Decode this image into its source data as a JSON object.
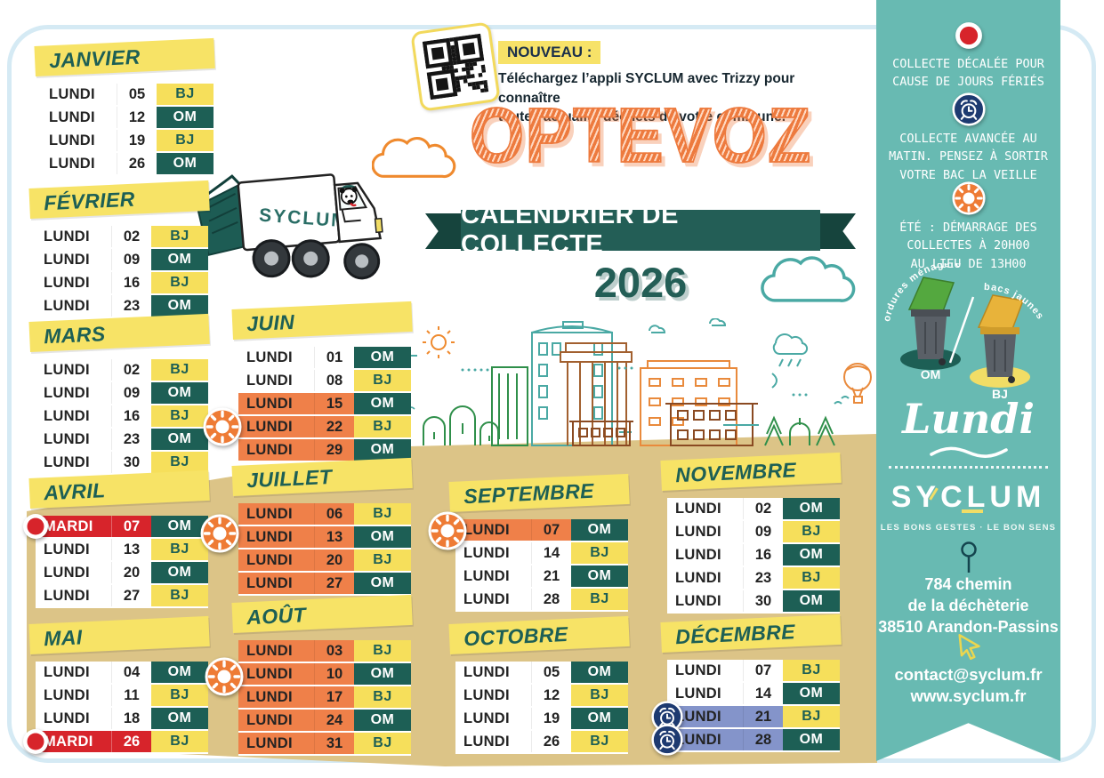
{
  "colors": {
    "teal": "#1d5f55",
    "teal_dark": "#16443d",
    "yellow": "#f7e366",
    "badge_yellow": "#f6df5b",
    "orange": "#ef8049",
    "orange_title": "#ed7a3e",
    "red": "#d7242b",
    "navy": "#1d3a70",
    "periwinkle": "#8494ca",
    "sand": "#dcc487",
    "sidebar_teal": "#68bab2"
  },
  "header": {
    "nouveau": "NOUVEAU :",
    "promo": "Téléchargez l’appli SYCLUM avec Trizzy pour connaître\ntoute l’actualité déchets de votre commune."
  },
  "title": {
    "commune": "OPTEVOZ",
    "banner": "CALENDRIER DE COLLECTE",
    "year": "2026"
  },
  "truck": {
    "brand": "SYCLUM"
  },
  "months": [
    {
      "key": "janvier",
      "name": "JANVIER",
      "rows": [
        {
          "day": "LUNDI",
          "date": "05",
          "type": "BJ",
          "variant": "normal",
          "icon": null
        },
        {
          "day": "LUNDI",
          "date": "12",
          "type": "OM",
          "variant": "normal",
          "icon": null
        },
        {
          "day": "LUNDI",
          "date": "19",
          "type": "BJ",
          "variant": "normal",
          "icon": null
        },
        {
          "day": "LUNDI",
          "date": "26",
          "type": "OM",
          "variant": "normal",
          "icon": null
        }
      ]
    },
    {
      "key": "fevrier",
      "name": "FÉVRIER",
      "rows": [
        {
          "day": "LUNDI",
          "date": "02",
          "type": "BJ",
          "variant": "normal",
          "icon": null
        },
        {
          "day": "LUNDI",
          "date": "09",
          "type": "OM",
          "variant": "normal",
          "icon": null
        },
        {
          "day": "LUNDI",
          "date": "16",
          "type": "BJ",
          "variant": "normal",
          "icon": null
        },
        {
          "day": "LUNDI",
          "date": "23",
          "type": "OM",
          "variant": "normal",
          "icon": null
        }
      ]
    },
    {
      "key": "mars",
      "name": "MARS",
      "rows": [
        {
          "day": "LUNDI",
          "date": "02",
          "type": "BJ",
          "variant": "normal",
          "icon": null
        },
        {
          "day": "LUNDI",
          "date": "09",
          "type": "OM",
          "variant": "normal",
          "icon": null
        },
        {
          "day": "LUNDI",
          "date": "16",
          "type": "BJ",
          "variant": "normal",
          "icon": null
        },
        {
          "day": "LUNDI",
          "date": "23",
          "type": "OM",
          "variant": "normal",
          "icon": null
        },
        {
          "day": "LUNDI",
          "date": "30",
          "type": "BJ",
          "variant": "normal",
          "icon": null
        }
      ]
    },
    {
      "key": "avril",
      "name": "AVRIL",
      "rows": [
        {
          "day": "MARDI",
          "date": "07",
          "type": "OM",
          "variant": "holiday",
          "icon": "holiday-dot"
        },
        {
          "day": "LUNDI",
          "date": "13",
          "type": "BJ",
          "variant": "normal",
          "icon": null
        },
        {
          "day": "LUNDI",
          "date": "20",
          "type": "OM",
          "variant": "normal",
          "icon": null
        },
        {
          "day": "LUNDI",
          "date": "27",
          "type": "BJ",
          "variant": "normal",
          "icon": null
        }
      ]
    },
    {
      "key": "mai",
      "name": "MAI",
      "rows": [
        {
          "day": "LUNDI",
          "date": "04",
          "type": "OM",
          "variant": "normal",
          "icon": null
        },
        {
          "day": "LUNDI",
          "date": "11",
          "type": "BJ",
          "variant": "normal",
          "icon": null
        },
        {
          "day": "LUNDI",
          "date": "18",
          "type": "OM",
          "variant": "normal",
          "icon": null
        },
        {
          "day": "MARDI",
          "date": "26",
          "type": "BJ",
          "variant": "holiday",
          "icon": "holiday-dot"
        }
      ]
    },
    {
      "key": "juin",
      "name": "JUIN",
      "rows": [
        {
          "day": "LUNDI",
          "date": "01",
          "type": "OM",
          "variant": "normal",
          "icon": null
        },
        {
          "day": "LUNDI",
          "date": "08",
          "type": "BJ",
          "variant": "normal",
          "icon": null
        },
        {
          "day": "LUNDI",
          "date": "15",
          "type": "OM",
          "variant": "summer",
          "icon": null
        },
        {
          "day": "LUNDI",
          "date": "22",
          "type": "BJ",
          "variant": "summer",
          "icon": null
        },
        {
          "day": "LUNDI",
          "date": "29",
          "type": "OM",
          "variant": "summer",
          "icon": null
        }
      ]
    },
    {
      "key": "juillet",
      "name": "JUILLET",
      "rows": [
        {
          "day": "LUNDI",
          "date": "06",
          "type": "BJ",
          "variant": "summer",
          "icon": null
        },
        {
          "day": "LUNDI",
          "date": "13",
          "type": "OM",
          "variant": "summer",
          "icon": null
        },
        {
          "day": "LUNDI",
          "date": "20",
          "type": "BJ",
          "variant": "summer",
          "icon": null
        },
        {
          "day": "LUNDI",
          "date": "27",
          "type": "OM",
          "variant": "summer",
          "icon": null
        }
      ]
    },
    {
      "key": "aout",
      "name": "AOÛT",
      "rows": [
        {
          "day": "LUNDI",
          "date": "03",
          "type": "BJ",
          "variant": "summer",
          "icon": null
        },
        {
          "day": "LUNDI",
          "date": "10",
          "type": "OM",
          "variant": "summer",
          "icon": null
        },
        {
          "day": "LUNDI",
          "date": "17",
          "type": "BJ",
          "variant": "summer",
          "icon": null
        },
        {
          "day": "LUNDI",
          "date": "24",
          "type": "OM",
          "variant": "summer",
          "icon": null
        },
        {
          "day": "LUNDI",
          "date": "31",
          "type": "BJ",
          "variant": "summer",
          "icon": null
        }
      ]
    },
    {
      "key": "septembre",
      "name": "SEPTEMBRE",
      "rows": [
        {
          "day": "LUNDI",
          "date": "07",
          "type": "OM",
          "variant": "summer",
          "icon": null
        },
        {
          "day": "LUNDI",
          "date": "14",
          "type": "BJ",
          "variant": "normal",
          "icon": null
        },
        {
          "day": "LUNDI",
          "date": "21",
          "type": "OM",
          "variant": "normal",
          "icon": null
        },
        {
          "day": "LUNDI",
          "date": "28",
          "type": "BJ",
          "variant": "normal",
          "icon": null
        }
      ]
    },
    {
      "key": "octobre",
      "name": "OCTOBRE",
      "rows": [
        {
          "day": "LUNDI",
          "date": "05",
          "type": "OM",
          "variant": "normal",
          "icon": null
        },
        {
          "day": "LUNDI",
          "date": "12",
          "type": "BJ",
          "variant": "normal",
          "icon": null
        },
        {
          "day": "LUNDI",
          "date": "19",
          "type": "OM",
          "variant": "normal",
          "icon": null
        },
        {
          "day": "LUNDI",
          "date": "26",
          "type": "BJ",
          "variant": "normal",
          "icon": null
        }
      ]
    },
    {
      "key": "novembre",
      "name": "NOVEMBRE",
      "rows": [
        {
          "day": "LUNDI",
          "date": "02",
          "type": "OM",
          "variant": "normal",
          "icon": null
        },
        {
          "day": "LUNDI",
          "date": "09",
          "type": "BJ",
          "variant": "normal",
          "icon": null
        },
        {
          "day": "LUNDI",
          "date": "16",
          "type": "OM",
          "variant": "normal",
          "icon": null
        },
        {
          "day": "LUNDI",
          "date": "23",
          "type": "BJ",
          "variant": "normal",
          "icon": null
        },
        {
          "day": "LUNDI",
          "date": "30",
          "type": "OM",
          "variant": "normal",
          "icon": null
        }
      ]
    },
    {
      "key": "decembre",
      "name": "DÉCEMBRE",
      "rows": [
        {
          "day": "LUNDI",
          "date": "07",
          "type": "BJ",
          "variant": "normal",
          "icon": null
        },
        {
          "day": "LUNDI",
          "date": "14",
          "type": "OM",
          "variant": "normal",
          "icon": null
        },
        {
          "day": "LUNDI",
          "date": "21",
          "type": "BJ",
          "variant": "early",
          "icon": "alarm-clock"
        },
        {
          "day": "LUNDI",
          "date": "28",
          "type": "OM",
          "variant": "early",
          "icon": "alarm-clock"
        }
      ]
    }
  ],
  "sidebar": {
    "legend": [
      {
        "icon": "holiday-dot",
        "text": "COLLECTE DÉCALÉE POUR\nCAUSE DE JOURS FÉRIÉS"
      },
      {
        "icon": "alarm-clock",
        "text": "COLLECTE AVANCÉE AU\nMATIN. PENSEZ À SORTIR\nVOTRE BAC LA VEILLE"
      },
      {
        "icon": "summer-sun",
        "text": "ÉTÉ : DÉMARRAGE DES\nCOLLECTES À 20H00\nAU LIEU DE 13H00"
      }
    ],
    "bins": {
      "om_curved": "ordures ménagères",
      "bj_curved": "bacs jaunes",
      "om_label": "OM",
      "bj_label": "BJ"
    },
    "collection_day": "Lundi",
    "brand": {
      "logo": "SYCLUM",
      "tagline": "LES BONS GESTES · LE BON SENS"
    },
    "address": "784 chemin\nde la déchèterie\n38510 Arandon-Passins",
    "email": "contact@syclum.fr",
    "website": "www.syclum.fr"
  }
}
